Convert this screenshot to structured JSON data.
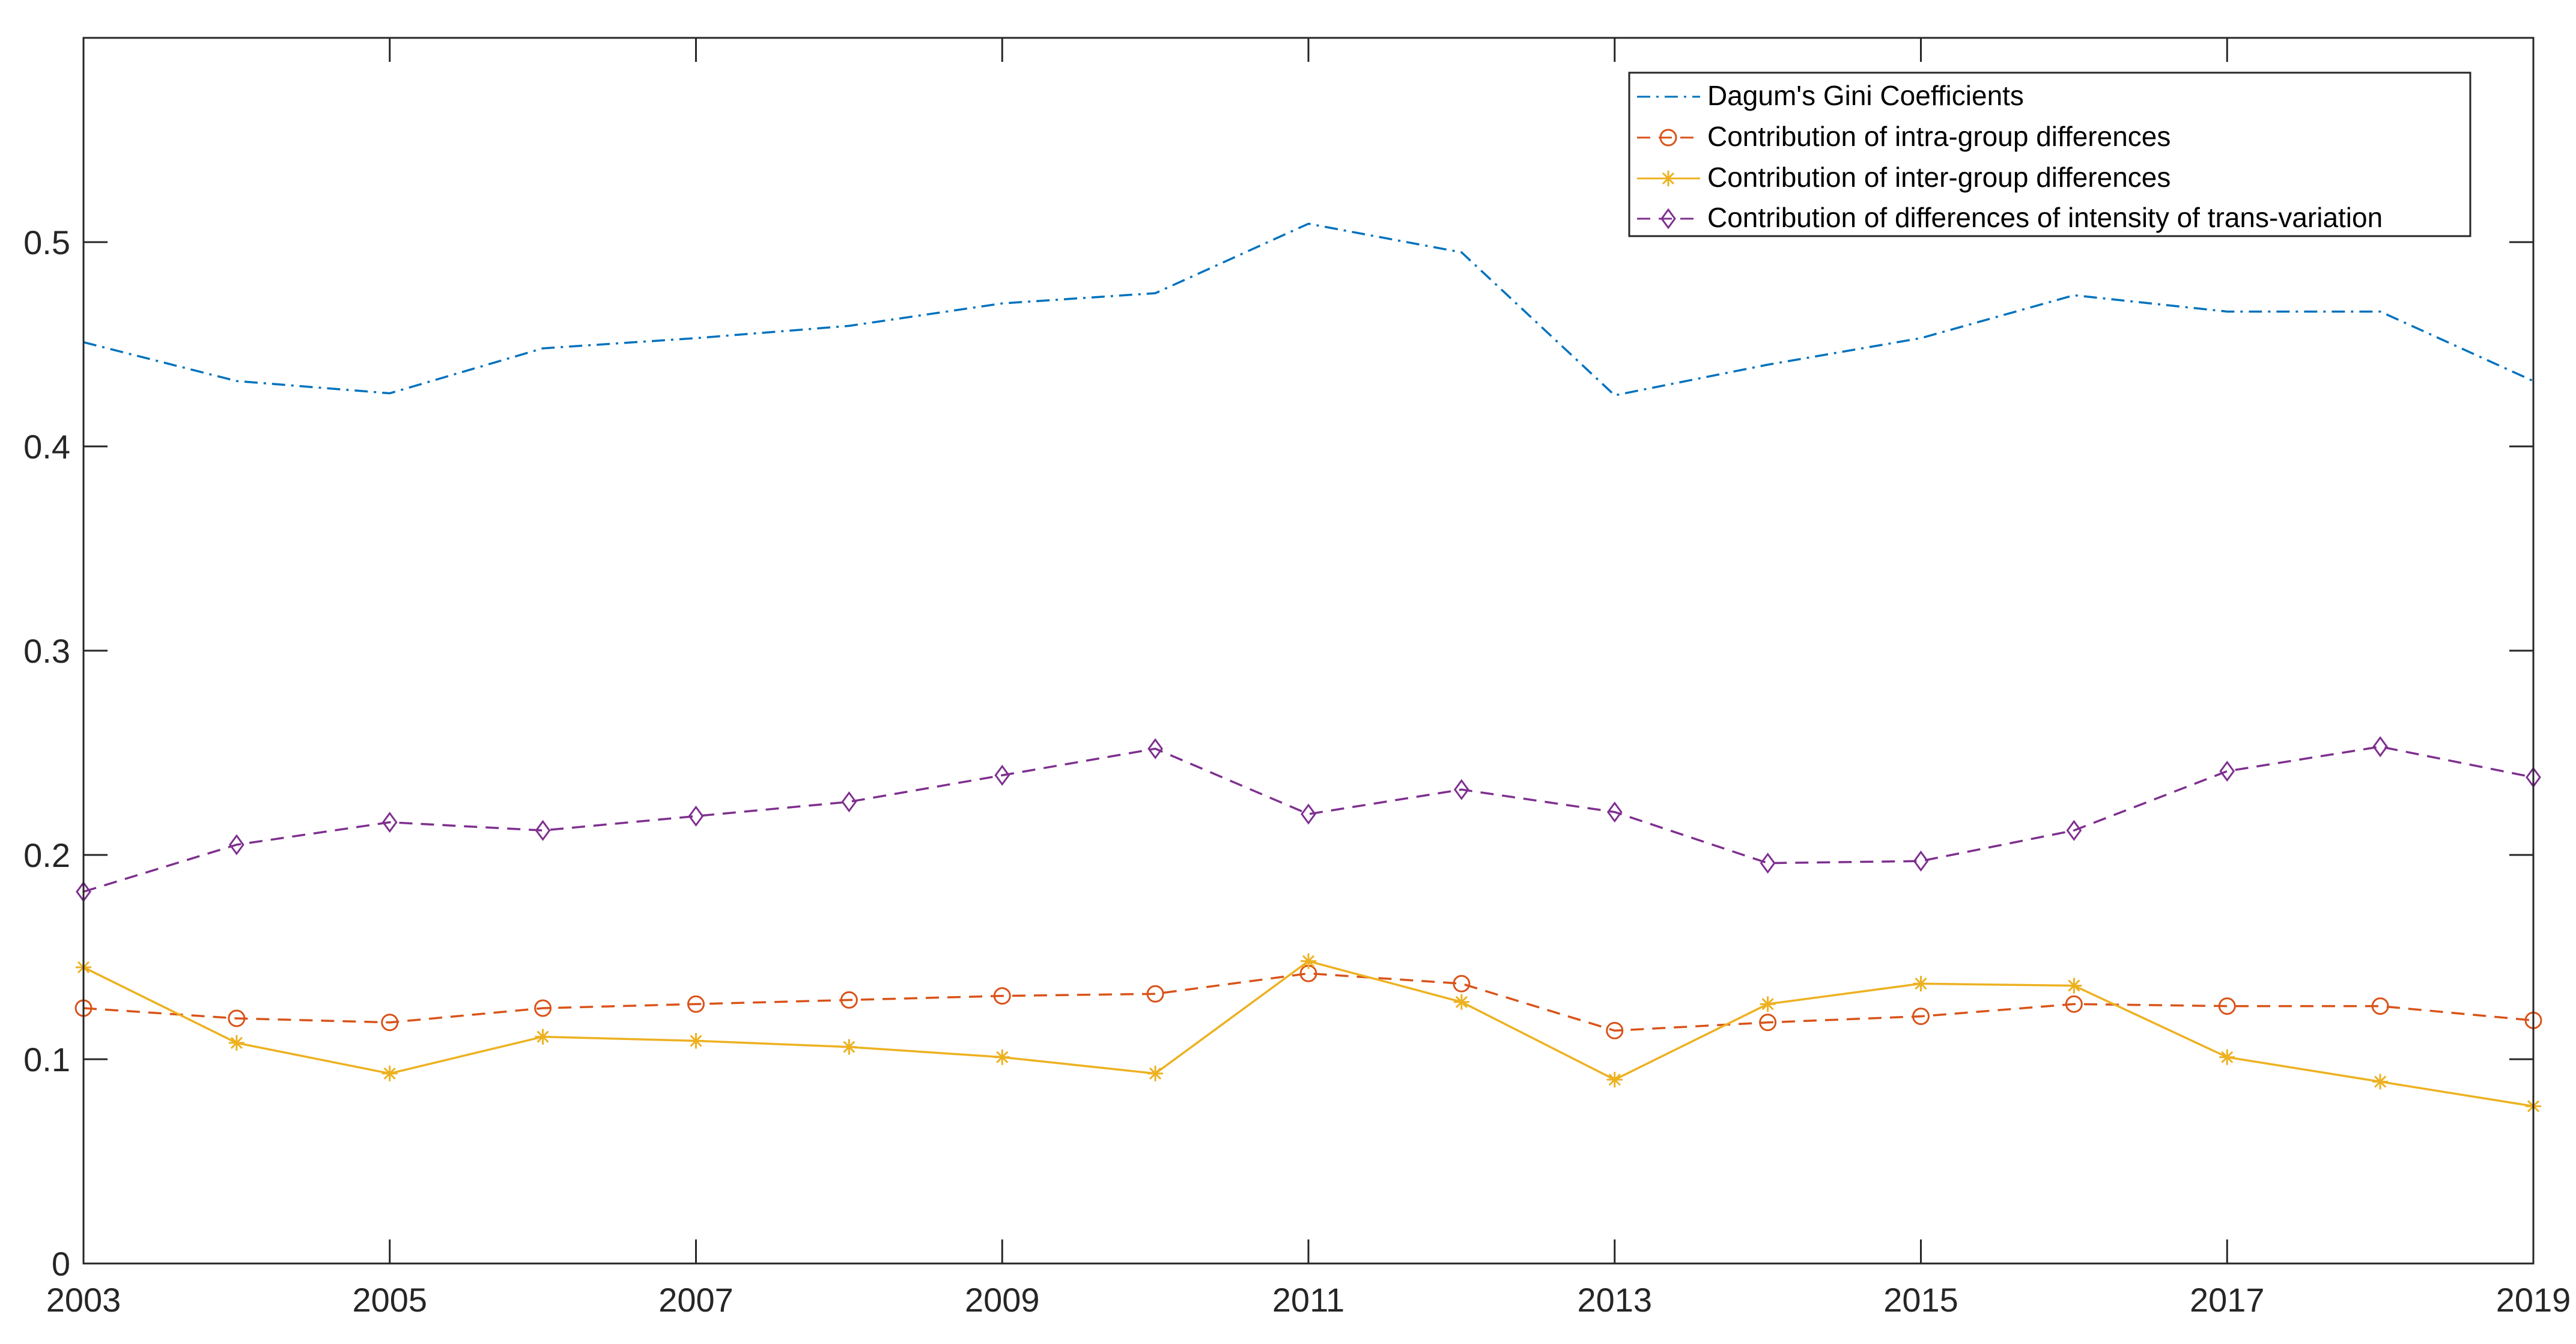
{
  "chart_data": {
    "type": "line",
    "title": "",
    "xlabel": "",
    "ylabel": "",
    "x": [
      2003,
      2004,
      2005,
      2006,
      2007,
      2008,
      2009,
      2010,
      2011,
      2012,
      2013,
      2014,
      2015,
      2016,
      2017,
      2018,
      2019
    ],
    "xlim": [
      2003,
      2019
    ],
    "ylim": [
      0,
      0.6
    ],
    "x_ticks": [
      "2003",
      "2005",
      "2007",
      "2009",
      "2011",
      "2013",
      "2015",
      "2017",
      "2019"
    ],
    "y_ticks": [
      "0",
      "0.1",
      "0.2",
      "0.3",
      "0.4",
      "0.5"
    ],
    "legend_position": "top-right",
    "series": [
      {
        "name": "Dagum's Gini Coefficients",
        "color": "#0072BD",
        "line_style": "dash-dot",
        "marker": "none",
        "values": [
          0.451,
          0.432,
          0.426,
          0.448,
          0.453,
          0.459,
          0.47,
          0.475,
          0.509,
          0.495,
          0.425,
          0.44,
          0.453,
          0.474,
          0.466,
          0.466,
          0.432
        ]
      },
      {
        "name": "Contribution of intra-group differences",
        "color": "#D95319",
        "line_style": "dashed",
        "marker": "circle",
        "values": [
          0.125,
          0.12,
          0.118,
          0.125,
          0.127,
          0.129,
          0.131,
          0.132,
          0.142,
          0.137,
          0.114,
          0.118,
          0.121,
          0.127,
          0.126,
          0.126,
          0.119
        ]
      },
      {
        "name": "Contribution of inter-group differences",
        "color": "#EDB120",
        "line_style": "solid",
        "marker": "asterisk",
        "values": [
          0.145,
          0.108,
          0.093,
          0.111,
          0.109,
          0.106,
          0.101,
          0.093,
          0.148,
          0.128,
          0.09,
          0.127,
          0.137,
          0.136,
          0.101,
          0.089,
          0.077
        ]
      },
      {
        "name": "Contribution of differences of intensity of trans-variation",
        "color": "#7E2F8E",
        "line_style": "dashed",
        "marker": "diamond",
        "values": [
          0.182,
          0.205,
          0.216,
          0.212,
          0.219,
          0.226,
          0.239,
          0.252,
          0.22,
          0.232,
          0.221,
          0.196,
          0.197,
          0.212,
          0.241,
          0.253,
          0.238
        ]
      }
    ]
  }
}
